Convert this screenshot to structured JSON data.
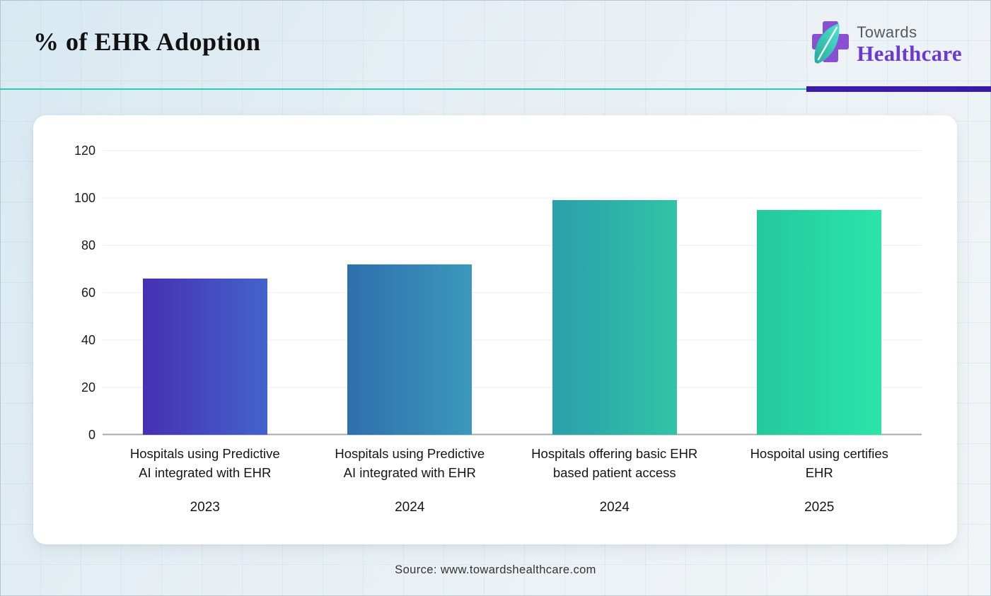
{
  "header": {
    "title": "% of EHR Adoption",
    "logo": {
      "line1": "Towards",
      "line2": "Healthcare"
    }
  },
  "chart_data": {
    "type": "bar",
    "title": "% of EHR Adoption",
    "categories": [
      "Hospitals using Predictive AI integrated with EHR",
      "Hospitals using Predictive AI integrated with EHR",
      "Hospitals offering basic EHR based patient access",
      "Hospoital using certifies EHR"
    ],
    "category_lines": [
      [
        "Hospitals using Predictive",
        "AI integrated with EHR"
      ],
      [
        "Hospitals using Predictive",
        "AI integrated with EHR"
      ],
      [
        "Hospitals offering basic EHR",
        "based patient access"
      ],
      [
        "Hospoital using certifies",
        "EHR"
      ]
    ],
    "years": [
      "2023",
      "2024",
      "2024",
      "2025"
    ],
    "values": [
      66,
      72,
      99,
      95
    ],
    "unit": "% of EHR adoption",
    "ylim": [
      0,
      120
    ],
    "yticks": [
      0,
      20,
      40,
      60,
      80,
      100,
      120
    ],
    "grid": true,
    "legend_position": "none",
    "bar_gradients": [
      [
        "#4730b1",
        "#4363cd"
      ],
      [
        "#2f6fae",
        "#3b98bb"
      ],
      [
        "#2b9fab",
        "#30c4a6"
      ],
      [
        "#25c89e",
        "#2ae5a9"
      ]
    ]
  },
  "footer": {
    "source": "Source: www.towardshealthcare.com"
  },
  "colors": {
    "divider_teal": "#22d3b5",
    "divider_indigo": "#3a1ca6",
    "logo_purple": "#6a3bd1",
    "logo_gray": "#58595b",
    "cross_purple": "#8a4fd3",
    "leaf_teal_light": "#4fe3cf",
    "leaf_teal_dark": "#27ab9b",
    "baseline_gray": "#a9a9a9",
    "gridline_gray": "#ececec"
  }
}
